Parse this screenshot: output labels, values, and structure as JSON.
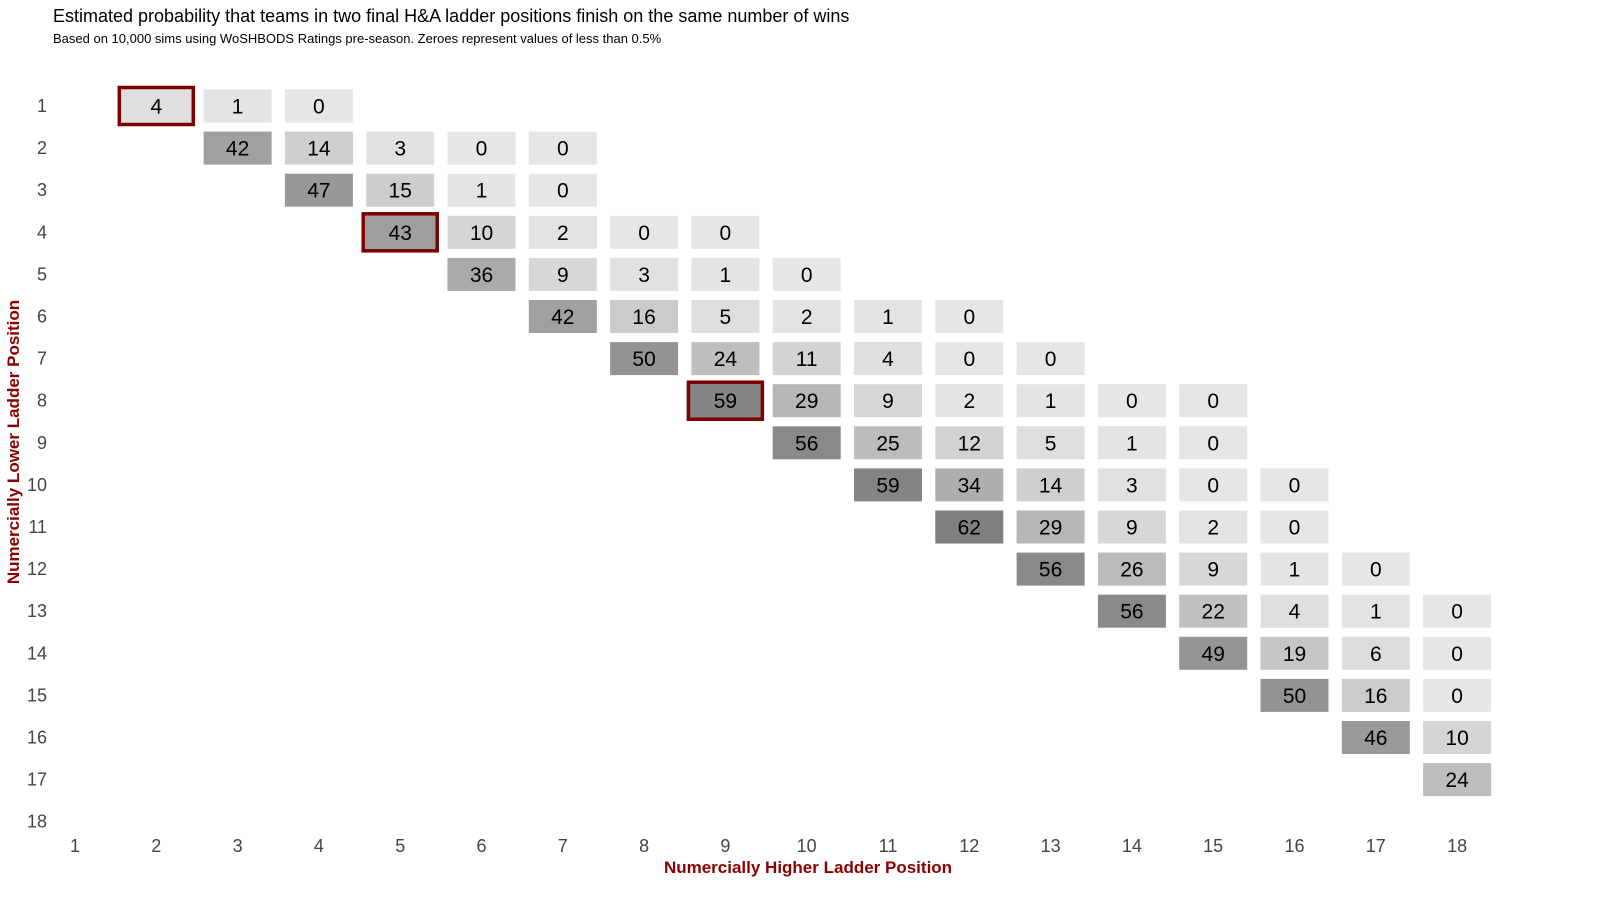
{
  "title": "Estimated probability that teams in two final H&A ladder positions finish on the same number of wins",
  "subtitle": "Based on 10,000 sims using WoSHBODS Ratings pre-season. Zeroes represent values of less than 0.5%",
  "chart_data": {
    "type": "heatmap",
    "xlabel": "Numercially Higher Ladder Position",
    "ylabel": "Numercially Lower Ladder Position",
    "x_ticks": [
      "1",
      "2",
      "3",
      "4",
      "5",
      "6",
      "7",
      "8",
      "9",
      "10",
      "11",
      "12",
      "13",
      "14",
      "15",
      "16",
      "17",
      "18"
    ],
    "y_ticks": [
      "1",
      "2",
      "3",
      "4",
      "5",
      "6",
      "7",
      "8",
      "9",
      "10",
      "11",
      "12",
      "13",
      "14",
      "15",
      "16",
      "17",
      "18"
    ],
    "value_range": [
      0,
      62
    ],
    "cells": [
      {
        "row": 1,
        "col": 2,
        "value": 4,
        "highlight": true
      },
      {
        "row": 1,
        "col": 3,
        "value": 1
      },
      {
        "row": 1,
        "col": 4,
        "value": 0
      },
      {
        "row": 2,
        "col": 3,
        "value": 42
      },
      {
        "row": 2,
        "col": 4,
        "value": 14
      },
      {
        "row": 2,
        "col": 5,
        "value": 3
      },
      {
        "row": 2,
        "col": 6,
        "value": 0
      },
      {
        "row": 2,
        "col": 7,
        "value": 0
      },
      {
        "row": 3,
        "col": 4,
        "value": 47
      },
      {
        "row": 3,
        "col": 5,
        "value": 15
      },
      {
        "row": 3,
        "col": 6,
        "value": 1
      },
      {
        "row": 3,
        "col": 7,
        "value": 0
      },
      {
        "row": 4,
        "col": 5,
        "value": 43,
        "highlight": true
      },
      {
        "row": 4,
        "col": 6,
        "value": 10
      },
      {
        "row": 4,
        "col": 7,
        "value": 2
      },
      {
        "row": 4,
        "col": 8,
        "value": 0
      },
      {
        "row": 4,
        "col": 9,
        "value": 0
      },
      {
        "row": 5,
        "col": 6,
        "value": 36
      },
      {
        "row": 5,
        "col": 7,
        "value": 9
      },
      {
        "row": 5,
        "col": 8,
        "value": 3
      },
      {
        "row": 5,
        "col": 9,
        "value": 1
      },
      {
        "row": 5,
        "col": 10,
        "value": 0
      },
      {
        "row": 6,
        "col": 7,
        "value": 42
      },
      {
        "row": 6,
        "col": 8,
        "value": 16
      },
      {
        "row": 6,
        "col": 9,
        "value": 5
      },
      {
        "row": 6,
        "col": 10,
        "value": 2
      },
      {
        "row": 6,
        "col": 11,
        "value": 1
      },
      {
        "row": 6,
        "col": 12,
        "value": 0
      },
      {
        "row": 7,
        "col": 8,
        "value": 50
      },
      {
        "row": 7,
        "col": 9,
        "value": 24
      },
      {
        "row": 7,
        "col": 10,
        "value": 11
      },
      {
        "row": 7,
        "col": 11,
        "value": 4
      },
      {
        "row": 7,
        "col": 12,
        "value": 0
      },
      {
        "row": 7,
        "col": 13,
        "value": 0
      },
      {
        "row": 8,
        "col": 9,
        "value": 59,
        "highlight": true
      },
      {
        "row": 8,
        "col": 10,
        "value": 29
      },
      {
        "row": 8,
        "col": 11,
        "value": 9
      },
      {
        "row": 8,
        "col": 12,
        "value": 2
      },
      {
        "row": 8,
        "col": 13,
        "value": 1
      },
      {
        "row": 8,
        "col": 14,
        "value": 0
      },
      {
        "row": 8,
        "col": 15,
        "value": 0
      },
      {
        "row": 9,
        "col": 10,
        "value": 56
      },
      {
        "row": 9,
        "col": 11,
        "value": 25
      },
      {
        "row": 9,
        "col": 12,
        "value": 12
      },
      {
        "row": 9,
        "col": 13,
        "value": 5
      },
      {
        "row": 9,
        "col": 14,
        "value": 1
      },
      {
        "row": 9,
        "col": 15,
        "value": 0
      },
      {
        "row": 10,
        "col": 11,
        "value": 59
      },
      {
        "row": 10,
        "col": 12,
        "value": 34
      },
      {
        "row": 10,
        "col": 13,
        "value": 14
      },
      {
        "row": 10,
        "col": 14,
        "value": 3
      },
      {
        "row": 10,
        "col": 15,
        "value": 0
      },
      {
        "row": 10,
        "col": 16,
        "value": 0
      },
      {
        "row": 11,
        "col": 12,
        "value": 62
      },
      {
        "row": 11,
        "col": 13,
        "value": 29
      },
      {
        "row": 11,
        "col": 14,
        "value": 9
      },
      {
        "row": 11,
        "col": 15,
        "value": 2
      },
      {
        "row": 11,
        "col": 16,
        "value": 0
      },
      {
        "row": 12,
        "col": 13,
        "value": 56
      },
      {
        "row": 12,
        "col": 14,
        "value": 26
      },
      {
        "row": 12,
        "col": 15,
        "value": 9
      },
      {
        "row": 12,
        "col": 16,
        "value": 1
      },
      {
        "row": 12,
        "col": 17,
        "value": 0
      },
      {
        "row": 13,
        "col": 14,
        "value": 56
      },
      {
        "row": 13,
        "col": 15,
        "value": 22
      },
      {
        "row": 13,
        "col": 16,
        "value": 4
      },
      {
        "row": 13,
        "col": 17,
        "value": 1
      },
      {
        "row": 13,
        "col": 18,
        "value": 0
      },
      {
        "row": 14,
        "col": 15,
        "value": 49
      },
      {
        "row": 14,
        "col": 16,
        "value": 19
      },
      {
        "row": 14,
        "col": 17,
        "value": 6
      },
      {
        "row": 14,
        "col": 18,
        "value": 0
      },
      {
        "row": 15,
        "col": 16,
        "value": 50
      },
      {
        "row": 15,
        "col": 17,
        "value": 16
      },
      {
        "row": 15,
        "col": 18,
        "value": 0
      },
      {
        "row": 16,
        "col": 17,
        "value": 46
      },
      {
        "row": 16,
        "col": 18,
        "value": 10
      },
      {
        "row": 17,
        "col": 18,
        "value": 24
      }
    ],
    "grid": false,
    "legend": "none",
    "colors": {
      "low": "#e6e6e6",
      "high": "#7f7f7f",
      "highlight_border": "#7f0000",
      "axis_title": "#8b0000"
    }
  }
}
